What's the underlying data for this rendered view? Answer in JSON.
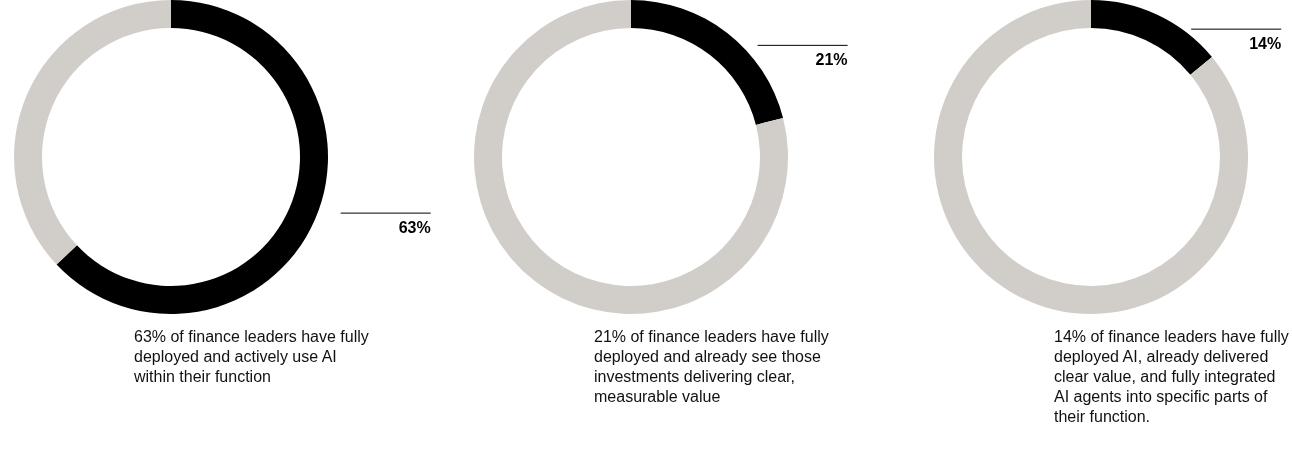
{
  "chart_data": [
    {
      "type": "donut",
      "categories": [
        null,
        null
      ],
      "values": [
        63,
        37
      ],
      "colors": [
        "#000000",
        "#d1ceca"
      ],
      "value_labels": [
        "63%",
        null
      ],
      "annotations": [
        "63% of finance leaders have fully deployed and actively use AI within their function"
      ]
    },
    {
      "type": "donut",
      "categories": [
        null,
        null
      ],
      "values": [
        21,
        79
      ],
      "colors": [
        "#000000",
        "#d1ceca"
      ],
      "value_labels": [
        "21%",
        null
      ],
      "annotations": [
        "21% of finance leaders have fully deployed and already see those investments delivering clear, measurable value"
      ]
    },
    {
      "type": "donut",
      "categories": [
        null,
        null
      ],
      "values": [
        14,
        86
      ],
      "colors": [
        "#000000",
        "#d1ceca"
      ],
      "value_labels": [
        "14%",
        null
      ],
      "annotations": [
        "14% of finance leaders have fully deployed AI, already delivered clear value, and fully integrated AI agents into specific parts of their function."
      ]
    }
  ]
}
